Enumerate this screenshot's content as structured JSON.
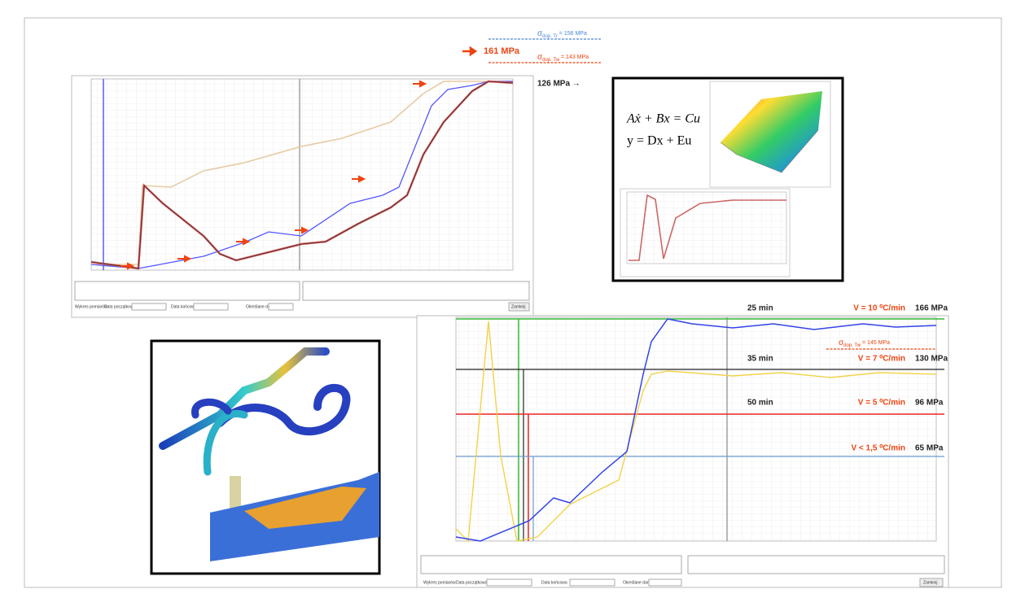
{
  "top_annotations": {
    "sigma_tr": {
      "symbol": "σ",
      "sub": "dop. Tr",
      "value": " = 156 MPa"
    },
    "arrow_value": "161 MPa",
    "sigma_tw": {
      "symbol": "σ",
      "sub": "dop. Tw",
      "value": " = 143 MPa"
    },
    "side_value": "126 MPa →"
  },
  "model": {
    "eq1": "Aẋ + Bx = Cu",
    "eq2": "y = Dx + Eu"
  },
  "bottom_annotations": {
    "sigma_tw": {
      "symbol": "σ",
      "sub": "dop. Tw",
      "value": " = 145 MPa"
    },
    "rows": [
      {
        "time": "25 min",
        "rate": "V = 10 ⁰C/min",
        "stress": "166 MPa"
      },
      {
        "time": "35 min",
        "rate": "V = 7 ⁰C/min",
        "stress": "130 MPa"
      },
      {
        "time": "50 min",
        "rate": "V = 5 ⁰C/min",
        "stress": "96 MPa"
      },
      {
        "rate": "V < 1,5 ⁰C/min",
        "stress": "65 MPa"
      }
    ]
  },
  "controls": {
    "series": "Wykres pomiarów",
    "start": "Data początkowa",
    "end": "Data końcowa",
    "data": "Określane dane",
    "close": "Zamknij"
  }
}
